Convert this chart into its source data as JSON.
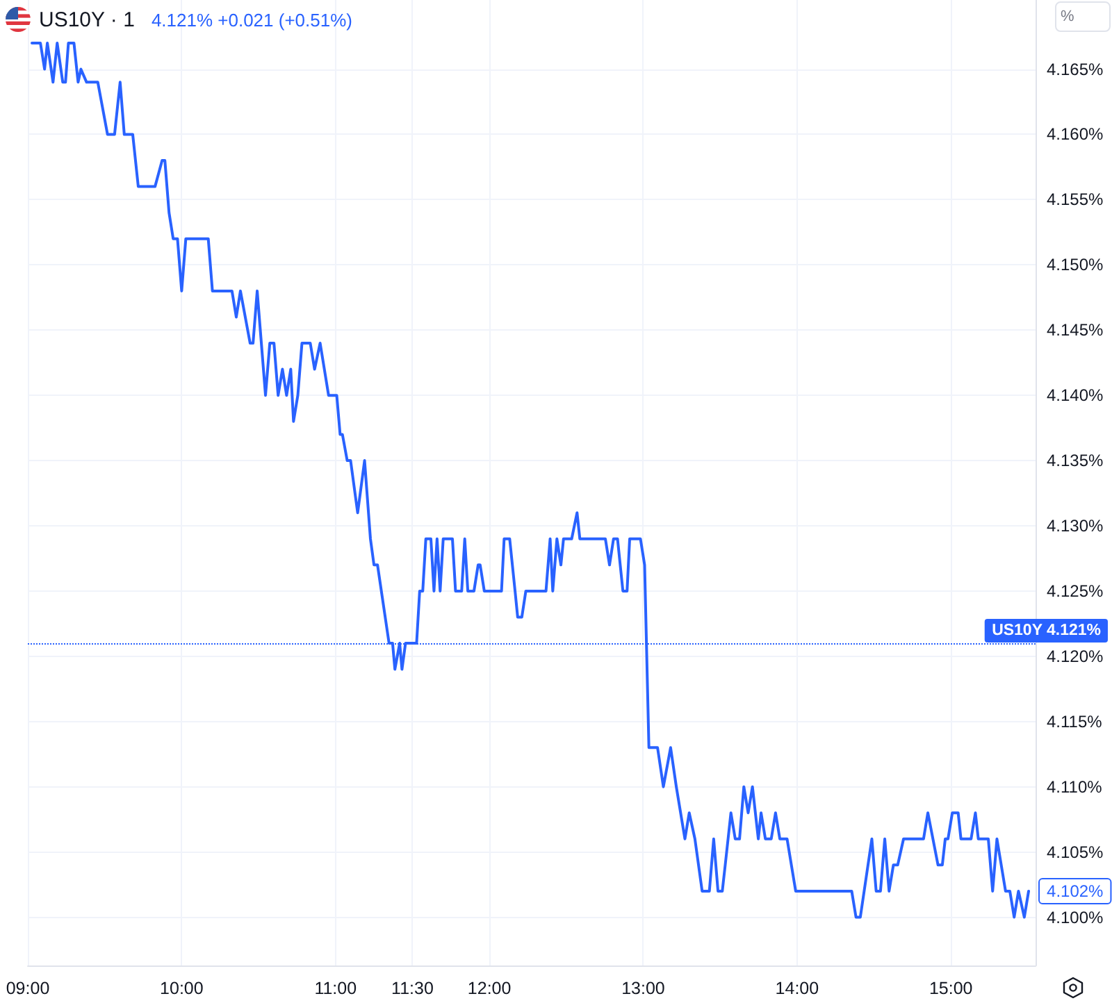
{
  "chart_data": {
    "type": "line",
    "title": "US10Y · 1",
    "subtitle": "4.121% +0.021 (+0.51%)",
    "color": "#2962ff",
    "grid": true,
    "x": [
      9.027,
      9.082,
      9.109,
      9.127,
      9.164,
      9.191,
      9.227,
      9.245,
      9.264,
      9.3,
      9.327,
      9.345,
      9.382,
      9.455,
      9.518,
      9.564,
      9.6,
      9.627,
      9.682,
      9.718,
      9.827,
      9.873,
      9.891,
      9.918,
      9.945,
      9.973,
      10.0,
      10.027,
      10.173,
      10.2,
      10.327,
      10.355,
      10.382,
      10.445,
      10.464,
      10.491,
      10.518,
      10.545,
      10.573,
      10.6,
      10.627,
      10.655,
      10.682,
      10.709,
      10.727,
      10.755,
      10.782,
      10.836,
      10.864,
      10.9,
      10.955,
      11.008,
      11.03,
      11.045,
      11.076,
      11.098,
      11.144,
      11.189,
      11.227,
      11.25,
      11.273,
      11.348,
      11.371,
      11.386,
      11.417,
      11.432,
      11.455,
      11.527,
      11.547,
      11.567,
      11.587,
      11.62,
      11.64,
      11.66,
      11.68,
      11.7,
      11.76,
      11.78,
      11.82,
      11.84,
      11.86,
      11.9,
      11.927,
      11.94,
      11.967,
      12.079,
      12.096,
      12.132,
      12.167,
      12.184,
      12.211,
      12.237,
      12.368,
      12.395,
      12.412,
      12.439,
      12.465,
      12.482,
      12.535,
      12.57,
      12.588,
      12.754,
      12.781,
      12.807,
      12.833,
      12.868,
      12.895,
      12.912,
      12.982,
      13.009,
      13.037,
      13.093,
      13.131,
      13.178,
      13.215,
      13.271,
      13.299,
      13.336,
      13.383,
      13.43,
      13.458,
      13.486,
      13.514,
      13.533,
      13.57,
      13.598,
      13.626,
      13.654,
      13.682,
      13.71,
      13.748,
      13.766,
      13.794,
      13.832,
      13.86,
      13.888,
      13.935,
      13.991,
      14.355,
      14.383,
      14.411,
      14.486,
      14.514,
      14.542,
      14.57,
      14.598,
      14.626,
      14.654,
      14.692,
      14.822,
      14.85,
      14.916,
      14.944,
      14.963,
      14.981,
      15.009,
      15.047,
      15.065,
      15.131,
      15.159,
      15.178,
      15.243,
      15.271,
      15.299,
      15.355,
      15.383,
      15.411,
      15.439,
      15.477,
      15.505
    ],
    "values": [
      4.167,
      4.167,
      4.165,
      4.167,
      4.164,
      4.167,
      4.164,
      4.164,
      4.167,
      4.167,
      4.164,
      4.165,
      4.164,
      4.164,
      4.16,
      4.16,
      4.164,
      4.16,
      4.16,
      4.156,
      4.156,
      4.158,
      4.158,
      4.154,
      4.152,
      4.152,
      4.148,
      4.152,
      4.152,
      4.148,
      4.148,
      4.146,
      4.148,
      4.144,
      4.144,
      4.148,
      4.144,
      4.14,
      4.144,
      4.144,
      4.14,
      4.142,
      4.14,
      4.142,
      4.138,
      4.14,
      4.144,
      4.144,
      4.142,
      4.144,
      4.14,
      4.14,
      4.137,
      4.137,
      4.135,
      4.135,
      4.131,
      4.135,
      4.129,
      4.127,
      4.127,
      4.121,
      4.121,
      4.119,
      4.121,
      4.119,
      4.121,
      4.121,
      4.125,
      4.125,
      4.129,
      4.129,
      4.125,
      4.129,
      4.125,
      4.129,
      4.129,
      4.125,
      4.125,
      4.129,
      4.125,
      4.125,
      4.127,
      4.127,
      4.125,
      4.125,
      4.129,
      4.129,
      4.125,
      4.123,
      4.123,
      4.125,
      4.125,
      4.129,
      4.125,
      4.129,
      4.127,
      4.129,
      4.129,
      4.131,
      4.129,
      4.129,
      4.127,
      4.129,
      4.129,
      4.125,
      4.125,
      4.129,
      4.129,
      4.127,
      4.113,
      4.113,
      4.11,
      4.113,
      4.11,
      4.106,
      4.108,
      4.106,
      4.102,
      4.102,
      4.106,
      4.102,
      4.102,
      4.104,
      4.108,
      4.106,
      4.106,
      4.11,
      4.108,
      4.11,
      4.106,
      4.108,
      4.106,
      4.106,
      4.108,
      4.106,
      4.106,
      4.102,
      4.102,
      4.1,
      4.1,
      4.106,
      4.102,
      4.102,
      4.106,
      4.102,
      4.104,
      4.104,
      4.106,
      4.106,
      4.108,
      4.104,
      4.104,
      4.106,
      4.106,
      4.108,
      4.108,
      4.106,
      4.106,
      4.108,
      4.106,
      4.106,
      4.102,
      4.106,
      4.102,
      4.102,
      4.1,
      4.102,
      4.1,
      4.102
    ],
    "xlim": [
      9,
      15.55
    ],
    "xticks": [
      {
        "value": 9,
        "label": "09:00"
      },
      {
        "value": 10,
        "label": "10:00"
      },
      {
        "value": 11,
        "label": "11:00"
      },
      {
        "value": 11.5,
        "label": "11:30"
      },
      {
        "value": 12,
        "label": "12:00"
      },
      {
        "value": 13,
        "label": "13:00"
      },
      {
        "value": 14,
        "label": "14:00"
      },
      {
        "value": 15,
        "label": "15:00"
      }
    ],
    "ylim": [
      4.0963,
      4.1703
    ],
    "yticks": [
      {
        "value": 4.1,
        "label": "4.100%"
      },
      {
        "value": 4.105,
        "label": "4.105%"
      },
      {
        "value": 4.11,
        "label": "4.110%"
      },
      {
        "value": 4.115,
        "label": "4.115%"
      },
      {
        "value": 4.12,
        "label": "4.120%"
      },
      {
        "value": 4.125,
        "label": "4.125%"
      },
      {
        "value": 4.13,
        "label": "4.130%"
      },
      {
        "value": 4.135,
        "label": "4.135%"
      },
      {
        "value": 4.14,
        "label": "4.140%"
      },
      {
        "value": 4.145,
        "label": "4.145%"
      },
      {
        "value": 4.15,
        "label": "4.150%"
      },
      {
        "value": 4.155,
        "label": "4.155%"
      },
      {
        "value": 4.16,
        "label": "4.160%"
      },
      {
        "value": 4.165,
        "label": "4.165%"
      }
    ],
    "ref_lines": [
      {
        "axis": "y",
        "value": 4.121,
        "label": "US10Y 4.121%",
        "color": "#2962ff",
        "line_style": "dotted"
      }
    ],
    "annotations": [
      "%",
      {
        "text": "4.102%",
        "x": 15.505,
        "y": 4.102
      }
    ]
  }
}
